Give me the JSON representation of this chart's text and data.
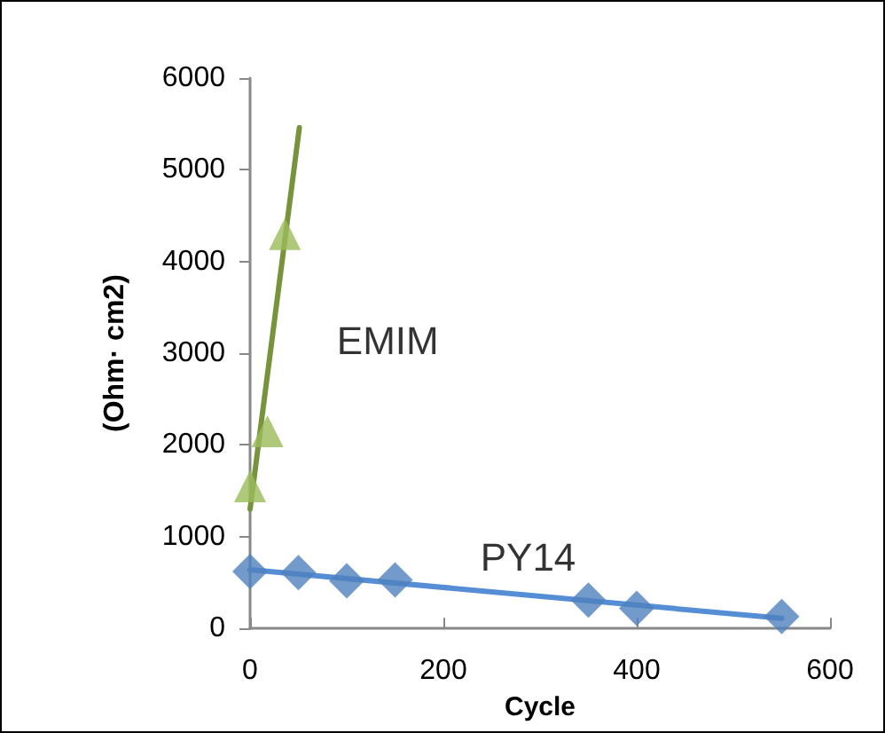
{
  "chart_data": {
    "type": "scatter",
    "xlabel": "Cycle",
    "ylabel": "(Ohm· cm2)",
    "xlim": [
      0,
      600
    ],
    "xticks": [
      0,
      200,
      400,
      600
    ],
    "ylim": [
      0,
      6000
    ],
    "yticks": [
      0,
      1000,
      2000,
      3000,
      4000,
      5000,
      6000
    ],
    "grid": false,
    "legend": false,
    "series": [
      {
        "name": "EMIM",
        "marker": "triangle",
        "color": "#9bbb59",
        "x": [
          0,
          18,
          36
        ],
        "values": [
          1550,
          2150,
          4300
        ]
      },
      {
        "name": "PY14",
        "marker": "diamond",
        "color": "#4f81bd",
        "x": [
          0,
          50,
          100,
          150,
          350,
          400,
          550
        ],
        "values": [
          620,
          610,
          520,
          530,
          310,
          220,
          130
        ]
      },
      {
        "type": "line",
        "color": "#77933c",
        "x": [
          0,
          51
        ],
        "values": [
          1300,
          5460
        ]
      },
      {
        "type": "line",
        "color": "#558ed5",
        "x": [
          0,
          550
        ],
        "values": [
          640,
          110
        ]
      }
    ]
  }
}
